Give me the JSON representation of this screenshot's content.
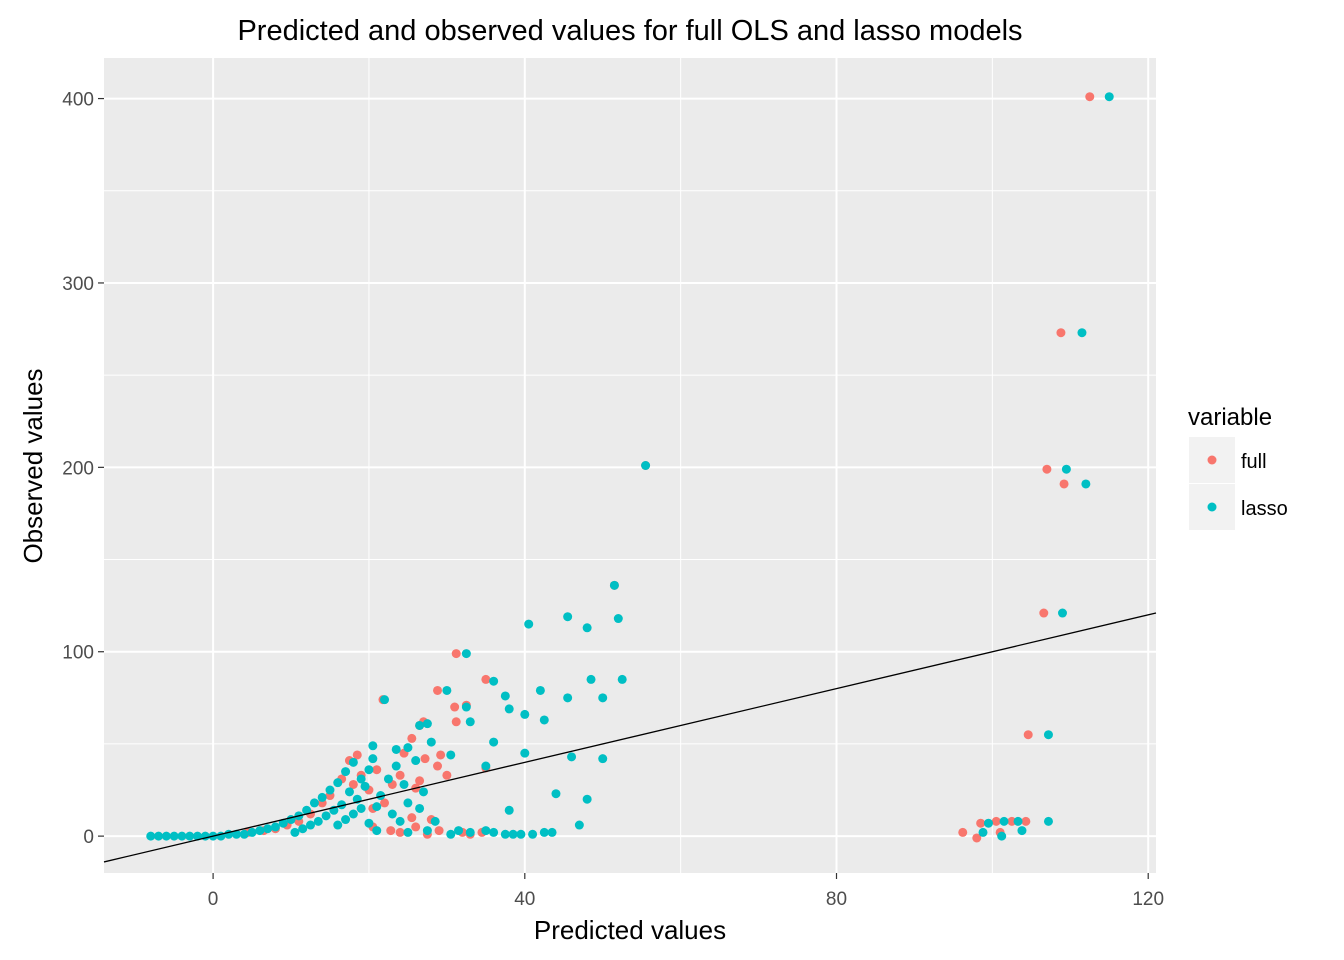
{
  "chart_data": {
    "type": "scatter",
    "title": "Predicted and observed values for full OLS and lasso models",
    "xlabel": "Predicted values",
    "ylabel": "Observed values",
    "xlim": [
      -14,
      121
    ],
    "ylim": [
      -20,
      422
    ],
    "x_ticks": [
      0,
      40,
      80,
      120
    ],
    "x_tick_labels": [
      "0",
      "40",
      "80",
      "120"
    ],
    "y_ticks": [
      0,
      100,
      200,
      300,
      400
    ],
    "y_tick_labels": [
      "0",
      "100",
      "200",
      "300",
      "400"
    ],
    "grid": true,
    "legend": {
      "title": "variable",
      "position": "right",
      "entries": [
        "full",
        "lasso"
      ]
    },
    "reference_line": {
      "slope": 1,
      "intercept": 0
    },
    "colors": {
      "panel": "#ebebeb",
      "grid": "#ffffff",
      "full": "#f8766d",
      "lasso": "#00bfc4",
      "legend_key": "#f2f2f2",
      "line": "#000000"
    },
    "series": [
      {
        "name": "full",
        "color": "#f8766d",
        "points": [
          [
            112.5,
            401
          ],
          [
            108.8,
            273
          ],
          [
            107,
            199
          ],
          [
            109.2,
            191
          ],
          [
            106.6,
            121
          ],
          [
            104.6,
            55
          ],
          [
            55.5,
            201
          ],
          [
            51.5,
            136
          ],
          [
            31.2,
            99
          ],
          [
            35,
            85
          ],
          [
            28.8,
            79
          ],
          [
            21.8,
            74
          ],
          [
            32.5,
            71
          ],
          [
            31,
            70
          ],
          [
            27,
            62
          ],
          [
            31.2,
            62
          ],
          [
            26.5,
            60
          ],
          [
            25.5,
            53
          ],
          [
            29.2,
            44
          ],
          [
            27.2,
            42
          ],
          [
            24.5,
            45
          ],
          [
            28.8,
            38
          ],
          [
            30,
            33
          ],
          [
            35,
            37
          ],
          [
            26.5,
            30
          ],
          [
            26,
            26
          ],
          [
            24,
            33
          ],
          [
            23,
            28
          ],
          [
            22,
            18
          ],
          [
            20.5,
            15
          ],
          [
            25.5,
            10
          ],
          [
            20.5,
            5
          ],
          [
            22.8,
            3
          ],
          [
            24,
            2
          ],
          [
            26,
            5
          ],
          [
            27.5,
            1
          ],
          [
            28,
            9
          ],
          [
            29,
            3
          ],
          [
            32,
            2
          ],
          [
            33,
            1
          ],
          [
            34.5,
            2
          ],
          [
            96.2,
            2
          ],
          [
            98,
            -1
          ],
          [
            98.5,
            7
          ],
          [
            100.5,
            8
          ],
          [
            101,
            2
          ],
          [
            102.5,
            8
          ],
          [
            104.3,
            8
          ],
          [
            18,
            28
          ],
          [
            19,
            33
          ],
          [
            20,
            25
          ],
          [
            21,
            36
          ],
          [
            16.5,
            31
          ],
          [
            17.5,
            41
          ],
          [
            18.5,
            44
          ],
          [
            15,
            22
          ],
          [
            14,
            18
          ],
          [
            12.5,
            12
          ],
          [
            11,
            8
          ],
          [
            9.5,
            6
          ],
          [
            8,
            4
          ],
          [
            6.5,
            3
          ],
          [
            4.5,
            2
          ]
        ]
      },
      {
        "name": "lasso",
        "color": "#00bfc4",
        "points": [
          [
            115,
            401
          ],
          [
            111.5,
            273
          ],
          [
            109.5,
            199
          ],
          [
            112,
            191
          ],
          [
            109,
            121
          ],
          [
            107.2,
            55
          ],
          [
            55.5,
            201
          ],
          [
            51.5,
            136
          ],
          [
            52,
            118
          ],
          [
            45.5,
            119
          ],
          [
            48,
            113
          ],
          [
            40.5,
            115
          ],
          [
            32.5,
            99
          ],
          [
            52.5,
            85
          ],
          [
            48.5,
            85
          ],
          [
            36,
            84
          ],
          [
            42,
            79
          ],
          [
            30,
            79
          ],
          [
            37.5,
            76
          ],
          [
            45.5,
            75
          ],
          [
            50,
            75
          ],
          [
            22,
            74
          ],
          [
            32.5,
            70
          ],
          [
            38,
            69
          ],
          [
            40,
            66
          ],
          [
            42.5,
            63
          ],
          [
            33,
            62
          ],
          [
            27.5,
            61
          ],
          [
            26.5,
            60
          ],
          [
            36,
            51
          ],
          [
            28,
            51
          ],
          [
            30.5,
            44
          ],
          [
            23.5,
            47
          ],
          [
            20.5,
            49
          ],
          [
            25,
            48
          ],
          [
            35,
            38
          ],
          [
            40,
            45
          ],
          [
            46,
            43
          ],
          [
            50,
            42
          ],
          [
            44,
            23
          ],
          [
            48,
            20
          ],
          [
            38,
            14
          ],
          [
            21,
            16
          ],
          [
            23,
            12
          ],
          [
            25,
            18
          ],
          [
            24,
            8
          ],
          [
            20,
            7
          ],
          [
            21,
            3
          ],
          [
            25,
            2
          ],
          [
            27.5,
            3
          ],
          [
            28.5,
            8
          ],
          [
            33,
            2
          ],
          [
            35,
            3
          ],
          [
            36,
            2
          ],
          [
            39.5,
            1
          ],
          [
            41,
            1
          ],
          [
            42.5,
            2
          ],
          [
            43.5,
            2
          ],
          [
            47,
            6
          ],
          [
            30.5,
            1
          ],
          [
            31.5,
            3
          ],
          [
            37.5,
            1
          ],
          [
            38.5,
            1
          ],
          [
            98.8,
            2
          ],
          [
            99.5,
            7
          ],
          [
            101.2,
            0
          ],
          [
            101.5,
            8
          ],
          [
            103.3,
            8
          ],
          [
            103.8,
            3
          ],
          [
            107.2,
            8
          ],
          [
            19,
            31
          ],
          [
            20,
            36
          ],
          [
            18,
            40
          ],
          [
            17,
            35
          ],
          [
            16,
            29
          ],
          [
            15,
            25
          ],
          [
            14,
            21
          ],
          [
            13,
            18
          ],
          [
            12,
            14
          ],
          [
            11,
            11
          ],
          [
            10,
            9
          ],
          [
            9,
            7
          ],
          [
            8,
            5
          ],
          [
            7,
            4
          ],
          [
            6,
            3
          ],
          [
            5,
            2
          ],
          [
            4,
            1
          ],
          [
            3,
            1
          ],
          [
            2,
            1
          ],
          [
            1,
            0
          ],
          [
            0,
            0
          ],
          [
            -1,
            0
          ],
          [
            -2,
            0
          ],
          [
            -3,
            0
          ],
          [
            -4,
            0
          ],
          [
            -5,
            0
          ],
          [
            -6,
            0
          ],
          [
            -7,
            0
          ],
          [
            -8,
            0
          ],
          [
            17.5,
            24
          ],
          [
            18.5,
            20
          ],
          [
            19.5,
            27
          ],
          [
            16.5,
            17
          ],
          [
            15.5,
            14
          ],
          [
            14.5,
            11
          ],
          [
            13.5,
            8
          ],
          [
            12.5,
            6
          ],
          [
            11.5,
            4
          ],
          [
            10.5,
            2
          ],
          [
            16,
            6
          ],
          [
            17,
            9
          ],
          [
            18,
            12
          ],
          [
            19,
            15
          ],
          [
            21.5,
            22
          ],
          [
            22.5,
            31
          ],
          [
            23.5,
            38
          ],
          [
            20.5,
            42
          ],
          [
            24.5,
            28
          ],
          [
            26,
            41
          ],
          [
            26.5,
            15
          ],
          [
            27,
            24
          ]
        ]
      }
    ],
    "dense_band_note": ""
  }
}
